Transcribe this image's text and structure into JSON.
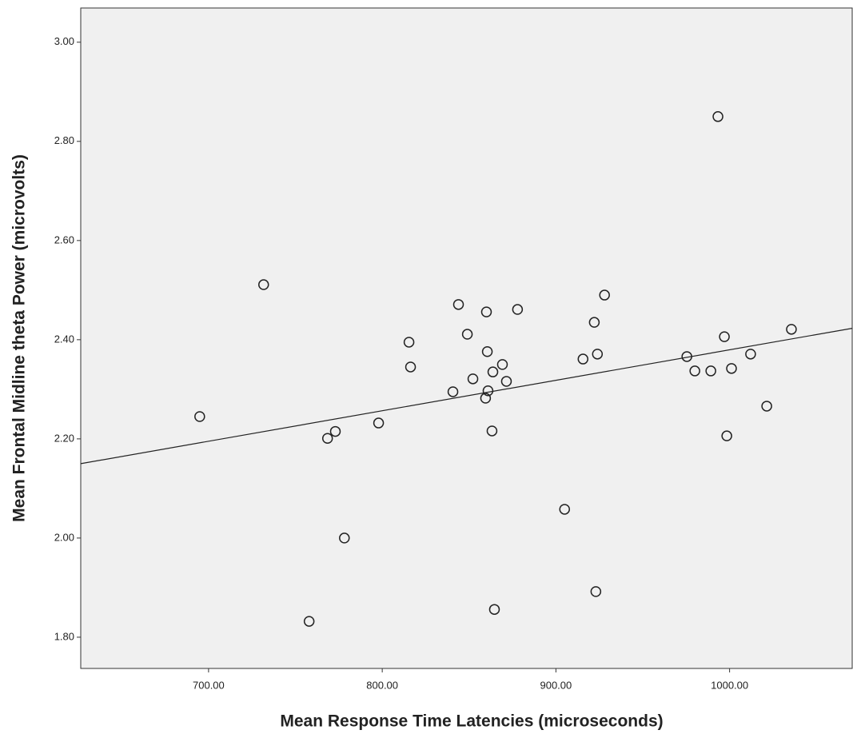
{
  "chart_data": {
    "type": "scatter",
    "x_label": "Mean Response Time Latencies (microseconds)",
    "y_label": "Mean Frontal Midline theta Power (microvolts)",
    "xlim": [
      626.4,
      1070.6
    ],
    "ylim": [
      1.737,
      3.069
    ],
    "xticks": [
      {
        "value": 700,
        "label": "700.00"
      },
      {
        "value": 800,
        "label": "800.00"
      },
      {
        "value": 900,
        "label": "900.00"
      },
      {
        "value": 1000,
        "label": "1000.00"
      }
    ],
    "yticks": [
      {
        "value": 1.8,
        "label": "1.80"
      },
      {
        "value": 2.0,
        "label": "2.00"
      },
      {
        "value": 2.2,
        "label": "2.20"
      },
      {
        "value": 2.4,
        "label": "2.40"
      },
      {
        "value": 2.6,
        "label": "2.60"
      },
      {
        "value": 2.8,
        "label": "2.80"
      },
      {
        "value": 3.0,
        "label": "3.00"
      }
    ],
    "background": "#f0f0f0",
    "marker_color": "#222222",
    "x": [
      694.9,
      731.7,
      757.9,
      768.5,
      773.0,
      778.2,
      797.9,
      815.4,
      816.3,
      840.7,
      843.9,
      849.0,
      852.2,
      859.5,
      860.0,
      860.5,
      860.9,
      863.7,
      863.2,
      864.6,
      869.2,
      871.5,
      877.9,
      905.0,
      915.6,
      922.1,
      923.9,
      923.0,
      928.0,
      975.4,
      980.0,
      989.2,
      993.3,
      997.0,
      998.4,
      1001.1,
      1012.1,
      1021.4,
      1035.6
    ],
    "y": [
      2.245,
      2.511,
      1.832,
      2.201,
      2.215,
      2.0,
      2.232,
      2.395,
      2.345,
      2.295,
      2.471,
      2.411,
      2.321,
      2.282,
      2.456,
      2.376,
      2.297,
      2.335,
      2.216,
      1.856,
      2.35,
      2.316,
      2.461,
      2.058,
      2.361,
      2.435,
      2.371,
      1.892,
      2.49,
      2.366,
      2.337,
      2.337,
      2.85,
      2.406,
      2.206,
      2.342,
      2.371,
      2.266,
      2.421
    ],
    "fit_line": {
      "x": [
        626.4,
        1070.6
      ],
      "y": [
        2.15,
        2.423
      ]
    }
  }
}
